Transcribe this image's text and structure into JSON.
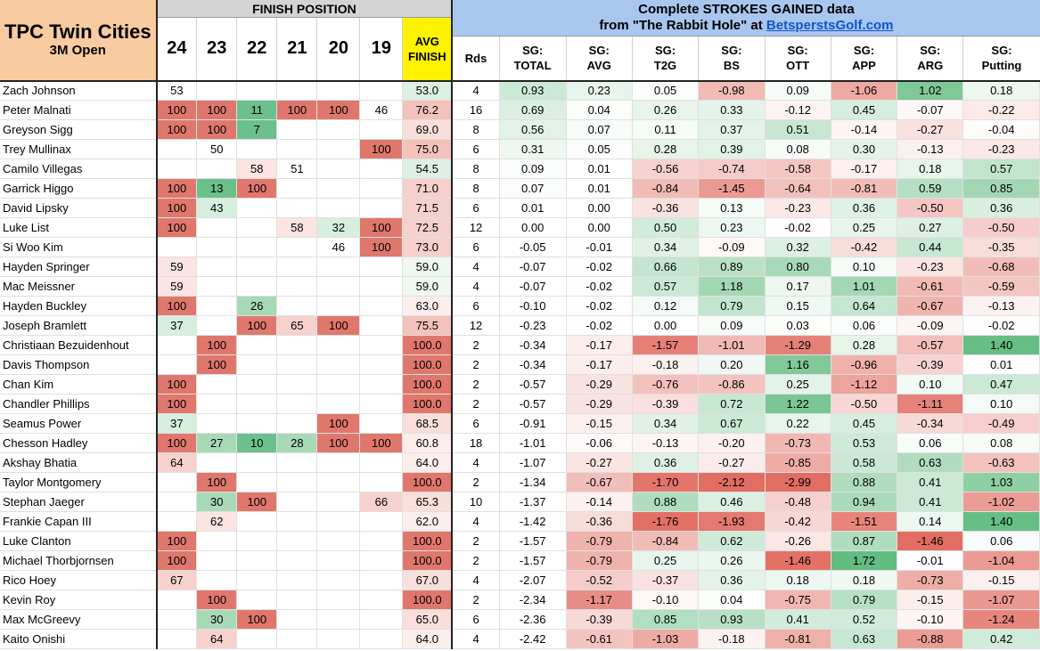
{
  "title": {
    "main": "TPC Twin Cities",
    "sub": "3M Open"
  },
  "finish_band": "FINISH POSITION",
  "sg_band": {
    "line1": "Complete STROKES GAINED data",
    "line2_pre": "from \"The Rabbit Hole\" at ",
    "link": "BetsperstsGolf.com"
  },
  "years": [
    "24",
    "23",
    "22",
    "21",
    "20",
    "19"
  ],
  "avg_header": [
    "AVG",
    "FINISH"
  ],
  "rds_header": "Rds",
  "sg_headers": [
    [
      "SG:",
      "TOTAL"
    ],
    [
      "SG:",
      "AVG"
    ],
    [
      "SG:",
      "T2G"
    ],
    [
      "SG:",
      "BS"
    ],
    [
      "SG:",
      "OTT"
    ],
    [
      "SG:",
      "APP"
    ],
    [
      "SG:",
      "ARG"
    ],
    [
      "SG:",
      "Putting"
    ]
  ],
  "rows": [
    {
      "name": "Zach Johnson",
      "f": [
        "53",
        "",
        "",
        "",
        "",
        ""
      ],
      "avg": "53.0",
      "rds": "4",
      "sg": [
        "0.93",
        "0.23",
        "0.05",
        "-0.98",
        "0.09",
        "-1.06",
        "1.02",
        "0.18"
      ]
    },
    {
      "name": "Peter Malnati",
      "f": [
        "100",
        "100",
        "11",
        "100",
        "100",
        "46"
      ],
      "avg": "76.2",
      "rds": "16",
      "sg": [
        "0.69",
        "0.04",
        "0.26",
        "0.33",
        "-0.12",
        "0.45",
        "-0.07",
        "-0.22"
      ]
    },
    {
      "name": "Greyson Sigg",
      "f": [
        "100",
        "100",
        "7",
        "",
        "",
        ""
      ],
      "avg": "69.0",
      "rds": "8",
      "sg": [
        "0.56",
        "0.07",
        "0.11",
        "0.37",
        "0.51",
        "-0.14",
        "-0.27",
        "-0.04"
      ]
    },
    {
      "name": "Trey Mullinax",
      "f": [
        "",
        "50",
        "",
        "",
        "",
        "100"
      ],
      "avg": "75.0",
      "rds": "6",
      "sg": [
        "0.31",
        "0.05",
        "0.28",
        "0.39",
        "0.08",
        "0.30",
        "-0.13",
        "-0.23"
      ]
    },
    {
      "name": "Camilo Villegas",
      "f": [
        "",
        "",
        "58",
        "51",
        "",
        ""
      ],
      "avg": "54.5",
      "rds": "8",
      "sg": [
        "0.09",
        "0.01",
        "-0.56",
        "-0.74",
        "-0.58",
        "-0.17",
        "0.18",
        "0.57"
      ]
    },
    {
      "name": "Garrick Higgo",
      "f": [
        "100",
        "13",
        "100",
        "",
        "",
        ""
      ],
      "avg": "71.0",
      "rds": "8",
      "sg": [
        "0.07",
        "0.01",
        "-0.84",
        "-1.45",
        "-0.64",
        "-0.81",
        "0.59",
        "0.85"
      ]
    },
    {
      "name": "David Lipsky",
      "f": [
        "100",
        "43",
        "",
        "",
        "",
        ""
      ],
      "avg": "71.5",
      "rds": "6",
      "sg": [
        "0.01",
        "0.00",
        "-0.36",
        "0.13",
        "-0.23",
        "0.36",
        "-0.50",
        "0.36"
      ]
    },
    {
      "name": "Luke List",
      "f": [
        "100",
        "",
        "",
        "58",
        "32",
        "100"
      ],
      "avg": "72.5",
      "rds": "12",
      "sg": [
        "0.00",
        "0.00",
        "0.50",
        "0.23",
        "-0.02",
        "0.25",
        "0.27",
        "-0.50"
      ]
    },
    {
      "name": "Si Woo Kim",
      "f": [
        "",
        "",
        "",
        "",
        "46",
        "100"
      ],
      "avg": "73.0",
      "rds": "6",
      "sg": [
        "-0.05",
        "-0.01",
        "0.34",
        "-0.09",
        "0.32",
        "-0.42",
        "0.44",
        "-0.35"
      ]
    },
    {
      "name": "Hayden Springer",
      "f": [
        "59",
        "",
        "",
        "",
        "",
        ""
      ],
      "avg": "59.0",
      "rds": "4",
      "sg": [
        "-0.07",
        "-0.02",
        "0.66",
        "0.89",
        "0.80",
        "0.10",
        "-0.23",
        "-0.68"
      ]
    },
    {
      "name": "Mac Meissner",
      "f": [
        "59",
        "",
        "",
        "",
        "",
        ""
      ],
      "avg": "59.0",
      "rds": "4",
      "sg": [
        "-0.07",
        "-0.02",
        "0.57",
        "1.18",
        "0.17",
        "1.01",
        "-0.61",
        "-0.59"
      ]
    },
    {
      "name": "Hayden Buckley",
      "f": [
        "100",
        "",
        "26",
        "",
        "",
        ""
      ],
      "avg": "63.0",
      "rds": "6",
      "sg": [
        "-0.10",
        "-0.02",
        "0.12",
        "0.79",
        "0.15",
        "0.64",
        "-0.67",
        "-0.13"
      ]
    },
    {
      "name": "Joseph Bramlett",
      "f": [
        "37",
        "",
        "100",
        "65",
        "100",
        ""
      ],
      "avg": "75.5",
      "rds": "12",
      "sg": [
        "-0.23",
        "-0.02",
        "0.00",
        "0.09",
        "0.03",
        "0.06",
        "-0.09",
        "-0.02"
      ]
    },
    {
      "name": "Christiaan Bezuidenhout",
      "f": [
        "",
        "100",
        "",
        "",
        "",
        ""
      ],
      "avg": "100.0",
      "rds": "2",
      "sg": [
        "-0.34",
        "-0.17",
        "-1.57",
        "-1.01",
        "-1.29",
        "0.28",
        "-0.57",
        "1.40"
      ]
    },
    {
      "name": "Davis Thompson",
      "f": [
        "",
        "100",
        "",
        "",
        "",
        ""
      ],
      "avg": "100.0",
      "rds": "2",
      "sg": [
        "-0.34",
        "-0.17",
        "-0.18",
        "0.20",
        "1.16",
        "-0.96",
        "-0.39",
        "0.01"
      ]
    },
    {
      "name": "Chan Kim",
      "f": [
        "100",
        "",
        "",
        "",
        "",
        ""
      ],
      "avg": "100.0",
      "rds": "2",
      "sg": [
        "-0.57",
        "-0.29",
        "-0.76",
        "-0.86",
        "0.25",
        "-1.12",
        "0.10",
        "0.47"
      ]
    },
    {
      "name": "Chandler Phillips",
      "f": [
        "100",
        "",
        "",
        "",
        "",
        ""
      ],
      "avg": "100.0",
      "rds": "2",
      "sg": [
        "-0.57",
        "-0.29",
        "-0.39",
        "0.72",
        "1.22",
        "-0.50",
        "-1.11",
        "0.10"
      ]
    },
    {
      "name": "Seamus Power",
      "f": [
        "37",
        "",
        "",
        "",
        "100",
        ""
      ],
      "avg": "68.5",
      "rds": "6",
      "sg": [
        "-0.91",
        "-0.15",
        "0.34",
        "0.67",
        "0.22",
        "0.45",
        "-0.34",
        "-0.49"
      ]
    },
    {
      "name": "Chesson Hadley",
      "f": [
        "100",
        "27",
        "10",
        "28",
        "100",
        "100"
      ],
      "avg": "60.8",
      "rds": "18",
      "sg": [
        "-1.01",
        "-0.06",
        "-0.13",
        "-0.20",
        "-0.73",
        "0.53",
        "0.06",
        "0.08"
      ]
    },
    {
      "name": "Akshay Bhatia",
      "f": [
        "64",
        "",
        "",
        "",
        "",
        ""
      ],
      "avg": "64.0",
      "rds": "4",
      "sg": [
        "-1.07",
        "-0.27",
        "0.36",
        "-0.27",
        "-0.85",
        "0.58",
        "0.63",
        "-0.63"
      ]
    },
    {
      "name": "Taylor Montgomery",
      "f": [
        "",
        "100",
        "",
        "",
        "",
        ""
      ],
      "avg": "100.0",
      "rds": "2",
      "sg": [
        "-1.34",
        "-0.67",
        "-1.70",
        "-2.12",
        "-2.99",
        "0.88",
        "0.41",
        "1.03"
      ]
    },
    {
      "name": "Stephan Jaeger",
      "f": [
        "",
        "30",
        "100",
        "",
        "",
        "66"
      ],
      "avg": "65.3",
      "rds": "10",
      "sg": [
        "-1.37",
        "-0.14",
        "0.88",
        "0.46",
        "-0.48",
        "0.94",
        "0.41",
        "-1.02"
      ]
    },
    {
      "name": "Frankie Capan III",
      "f": [
        "",
        "62",
        "",
        "",
        "",
        ""
      ],
      "avg": "62.0",
      "rds": "4",
      "sg": [
        "-1.42",
        "-0.36",
        "-1.76",
        "-1.93",
        "-0.42",
        "-1.51",
        "0.14",
        "1.40"
      ]
    },
    {
      "name": "Luke Clanton",
      "f": [
        "100",
        "",
        "",
        "",
        "",
        ""
      ],
      "avg": "100.0",
      "rds": "2",
      "sg": [
        "-1.57",
        "-0.79",
        "-0.84",
        "0.62",
        "-0.26",
        "0.87",
        "-1.46",
        "0.06"
      ]
    },
    {
      "name": "Michael Thorbjornsen",
      "f": [
        "100",
        "",
        "",
        "",
        "",
        ""
      ],
      "avg": "100.0",
      "rds": "2",
      "sg": [
        "-1.57",
        "-0.79",
        "0.25",
        "0.26",
        "-1.46",
        "1.72",
        "-0.01",
        "-1.04"
      ]
    },
    {
      "name": "Rico Hoey",
      "f": [
        "67",
        "",
        "",
        "",
        "",
        ""
      ],
      "avg": "67.0",
      "rds": "4",
      "sg": [
        "-2.07",
        "-0.52",
        "-0.37",
        "0.36",
        "0.18",
        "0.18",
        "-0.73",
        "-0.15"
      ]
    },
    {
      "name": "Kevin Roy",
      "f": [
        "",
        "100",
        "",
        "",
        "",
        ""
      ],
      "avg": "100.0",
      "rds": "2",
      "sg": [
        "-2.34",
        "-1.17",
        "-0.10",
        "0.04",
        "-0.75",
        "0.79",
        "-0.15",
        "-1.07"
      ]
    },
    {
      "name": "Max McGreevy",
      "f": [
        "",
        "30",
        "100",
        "",
        "",
        ""
      ],
      "avg": "65.0",
      "rds": "6",
      "sg": [
        "-2.36",
        "-0.39",
        "0.85",
        "0.93",
        "0.41",
        "0.52",
        "-0.10",
        "-1.24"
      ]
    },
    {
      "name": "Kaito Onishi",
      "f": [
        "",
        "64",
        "",
        "",
        "",
        ""
      ],
      "avg": "64.0",
      "rds": "4",
      "sg": [
        "-2.42",
        "-0.61",
        "-1.03",
        "-0.18",
        "-0.81",
        "0.63",
        "-0.88",
        "0.42"
      ]
    }
  ]
}
